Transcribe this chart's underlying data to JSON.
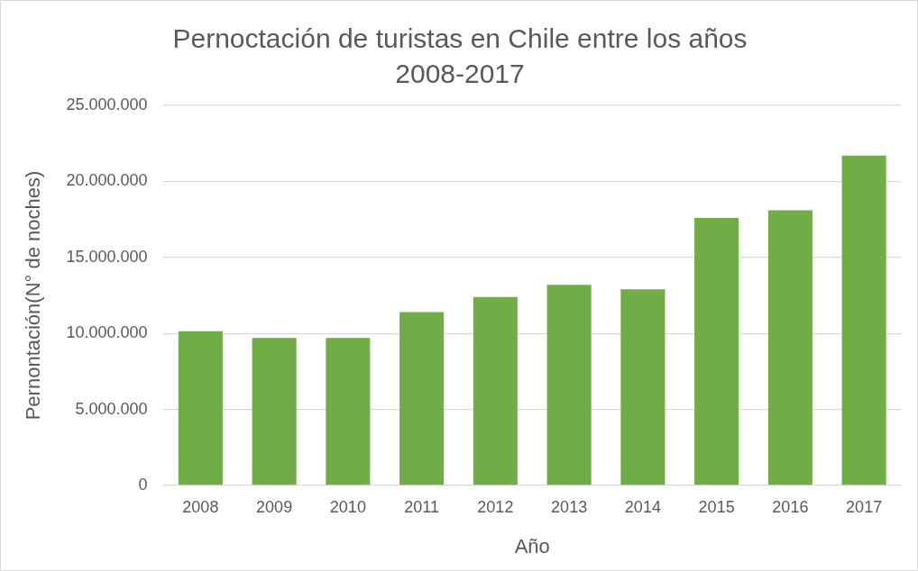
{
  "chart_data": {
    "type": "bar",
    "title": "Pernoctación de turistas en Chile entre los años 2008-2017",
    "xlabel": "Año",
    "ylabel": "Pernontación(N° de noches)",
    "categories": [
      "2008",
      "2009",
      "2010",
      "2011",
      "2012",
      "2013",
      "2014",
      "2015",
      "2016",
      "2017"
    ],
    "values": [
      10150000,
      9700000,
      9700000,
      11400000,
      12400000,
      13200000,
      12900000,
      17600000,
      18100000,
      21700000
    ],
    "color": "#70ad47",
    "ylim": [
      0,
      25000000
    ],
    "yticks": [
      {
        "value": 0,
        "label": "0"
      },
      {
        "value": 5000000,
        "label": "5.000.000"
      },
      {
        "value": 10000000,
        "label": "10.000.000"
      },
      {
        "value": 15000000,
        "label": "15.000.000"
      },
      {
        "value": 20000000,
        "label": "20.000.000"
      },
      {
        "value": 25000000,
        "label": "25.000.000"
      }
    ],
    "grid": "y",
    "legend": false
  }
}
